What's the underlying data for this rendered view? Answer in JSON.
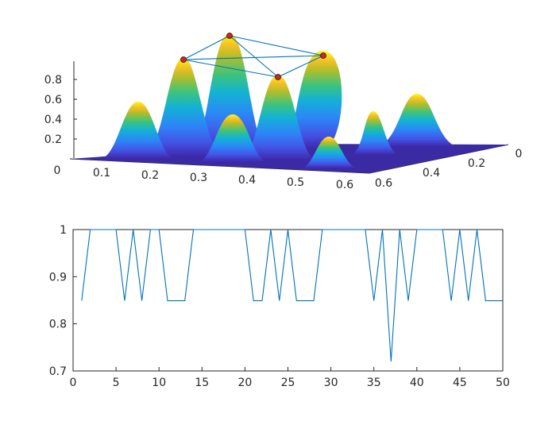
{
  "chart_data": [
    {
      "type": "surface",
      "zlim": [
        0,
        1
      ],
      "z_ticks": [
        0.2,
        0.4,
        0.6,
        0.8
      ],
      "x_ticks": [
        0,
        0.1,
        0.2,
        0.3,
        0.4,
        0.5,
        0.6
      ],
      "y_ticks": [
        0,
        0.2,
        0.4,
        0.6
      ],
      "colormap": "parula",
      "peaks": [
        {
          "x": 0.1,
          "y": 0.42,
          "z": 0.53
        },
        {
          "x": 0.15,
          "y": 0.3,
          "z": 0.85
        },
        {
          "x": 0.22,
          "y": 0.18,
          "z": 0.97
        },
        {
          "x": 0.32,
          "y": 0.15,
          "z": 0.66
        },
        {
          "x": 0.32,
          "y": 0.45,
          "z": 0.38
        },
        {
          "x": 0.38,
          "y": 0.3,
          "z": 0.73
        },
        {
          "x": 0.5,
          "y": 0.4,
          "z": 0.33
        },
        {
          "x": 0.42,
          "y": 0.15,
          "z": 0.81
        },
        {
          "x": 0.52,
          "y": 0.25,
          "z": 0.43
        },
        {
          "x": 0.56,
          "y": 0.14,
          "z": 0.55
        }
      ],
      "marked_peaks": [
        1,
        2,
        5,
        7
      ],
      "marker_color": "#d81e2c",
      "edge_color": "#0072bd"
    },
    {
      "type": "line",
      "xlim": [
        0,
        50
      ],
      "ylim": [
        0.7,
        1
      ],
      "x_ticks": [
        0,
        5,
        10,
        15,
        20,
        25,
        30,
        35,
        40,
        45,
        50
      ],
      "y_ticks": [
        0.7,
        0.8,
        0.9,
        1
      ],
      "y_tick_labels": [
        "0.7",
        "0.8",
        "0.9",
        "1"
      ],
      "line_color": "#0072bd",
      "x": [
        1,
        2,
        3,
        4,
        5,
        6,
        7,
        8,
        9,
        10,
        11,
        12,
        13,
        14,
        15,
        16,
        17,
        18,
        19,
        20,
        21,
        22,
        23,
        24,
        25,
        26,
        27,
        28,
        29,
        30,
        31,
        32,
        33,
        34,
        35,
        36,
        37,
        38,
        39,
        40,
        41,
        42,
        43,
        44,
        45,
        46,
        47,
        48,
        49,
        50
      ],
      "y": [
        0.849,
        1,
        1,
        1,
        1,
        0.849,
        1,
        0.849,
        1,
        1,
        0.849,
        0.849,
        0.849,
        1,
        1,
        1,
        1,
        1,
        1,
        1,
        0.849,
        0.849,
        1,
        0.849,
        1,
        0.849,
        0.849,
        0.849,
        1,
        1,
        1,
        1,
        1,
        1,
        0.849,
        1,
        0.72,
        1,
        0.849,
        1,
        1,
        1,
        1,
        0.849,
        1,
        0.849,
        1,
        0.849,
        0.849,
        0.849
      ]
    }
  ]
}
